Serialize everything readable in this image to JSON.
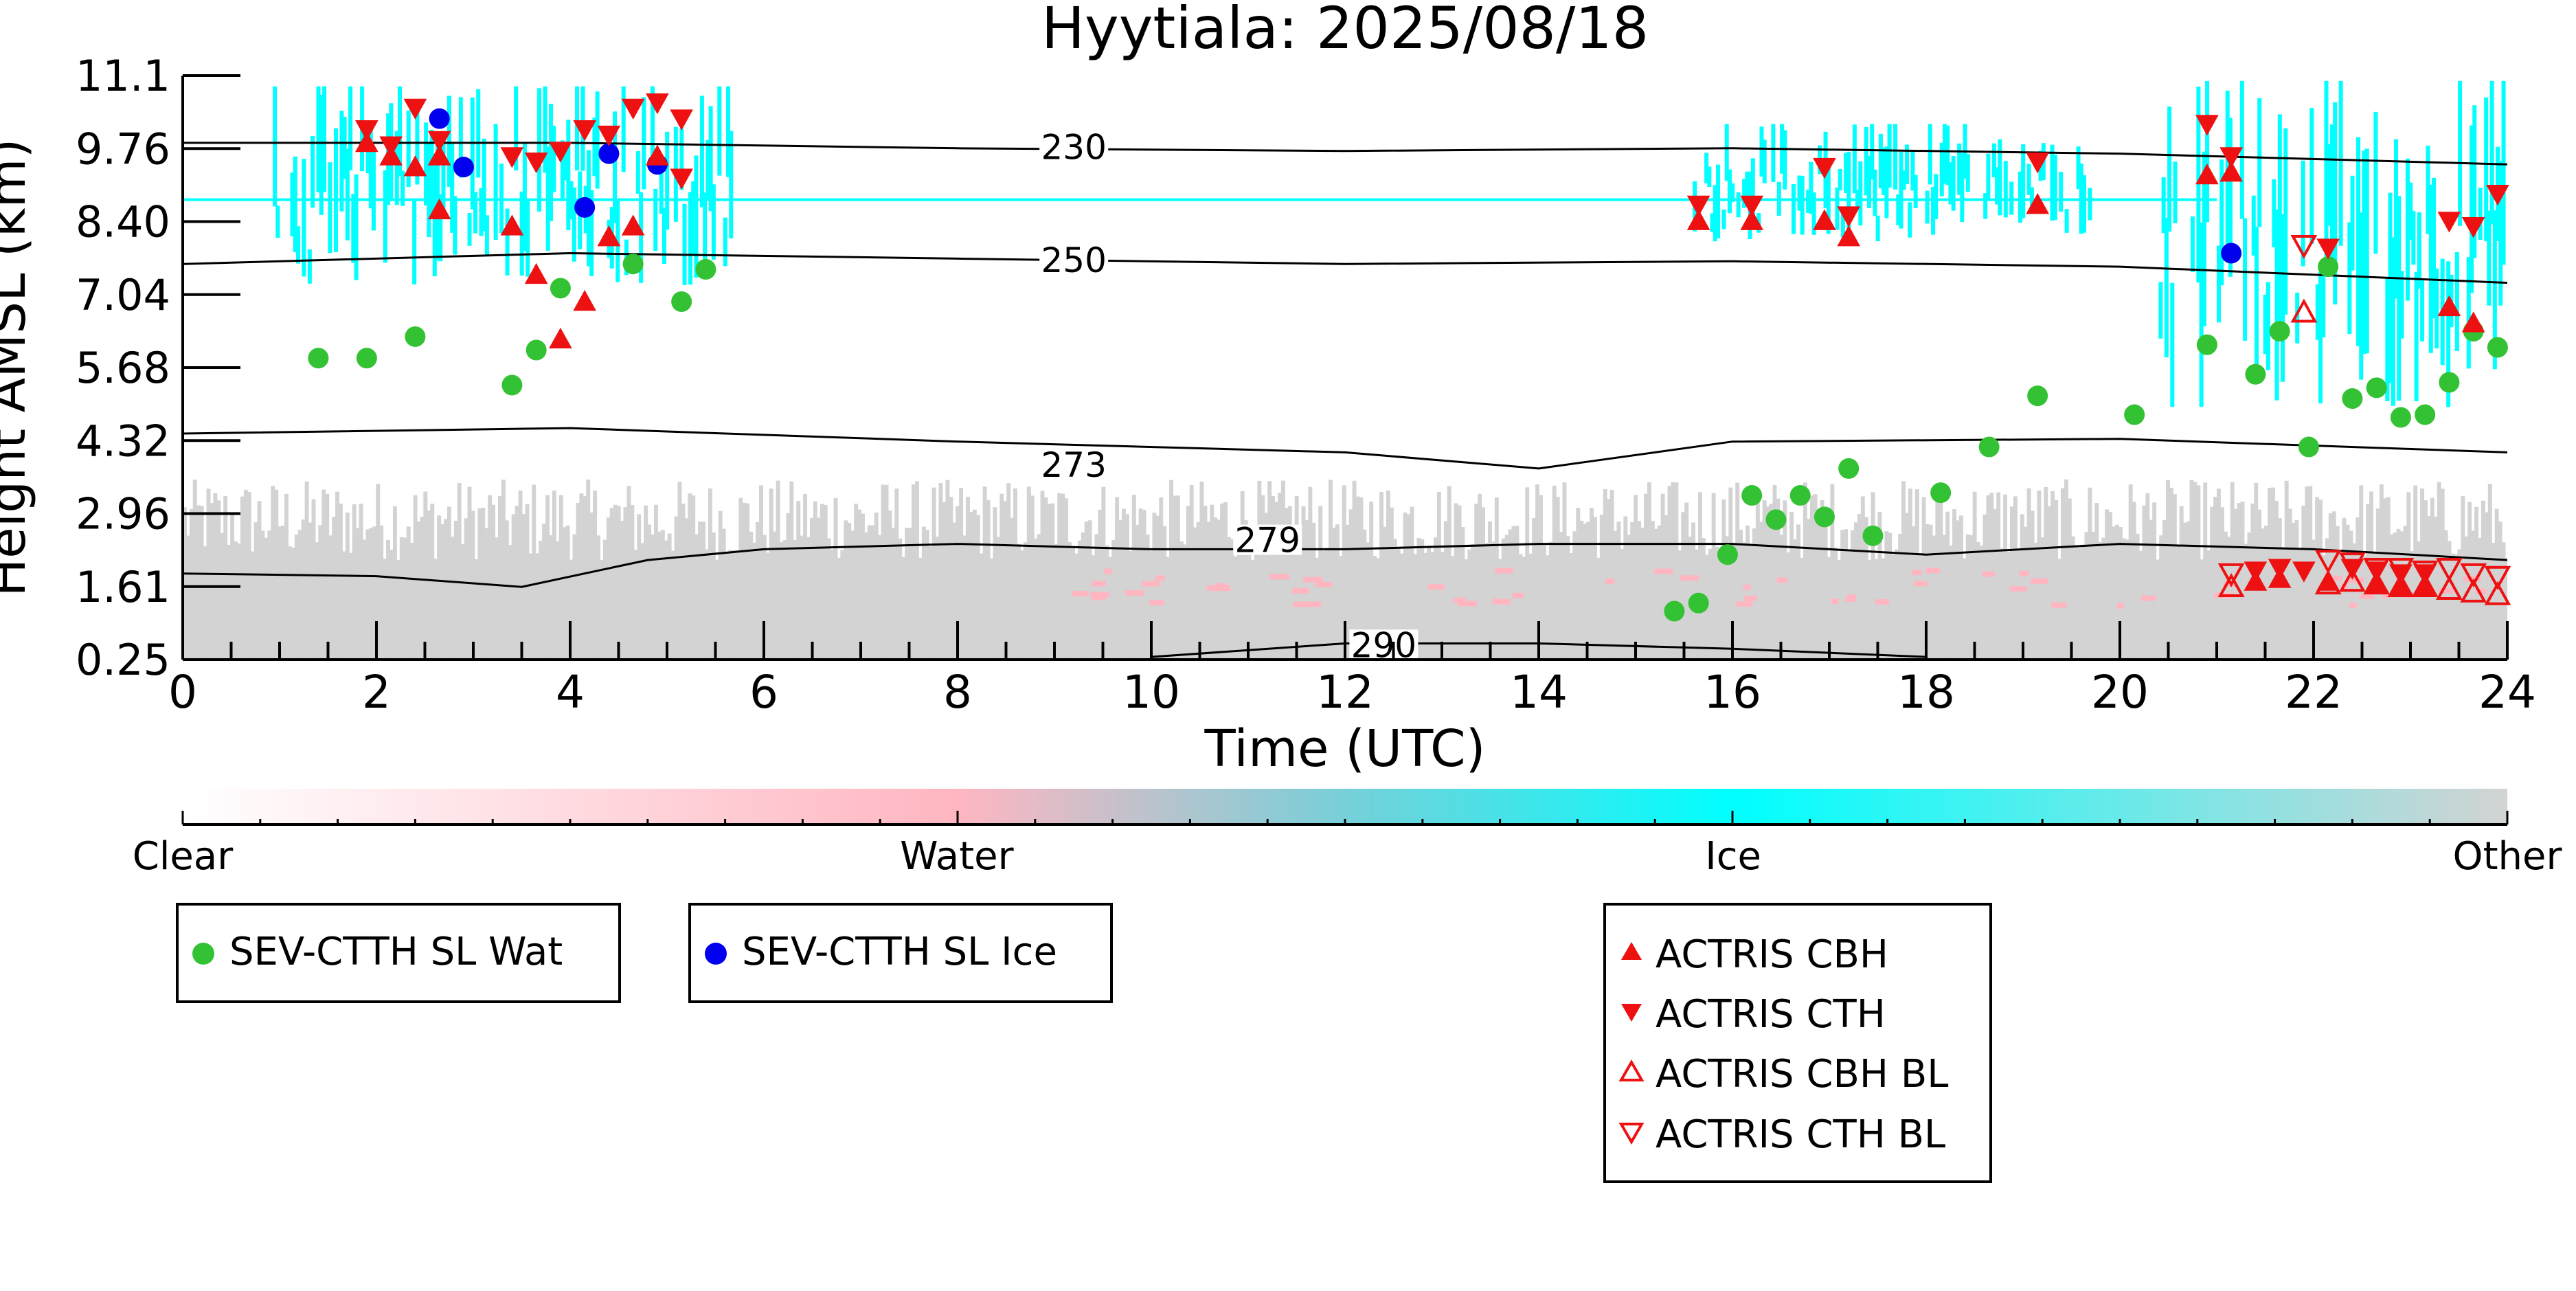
{
  "chart_data": {
    "type": "scatter",
    "title": "Hyytiala: 2025/08/18",
    "xlabel": "Time (UTC)",
    "ylabel": "Height AMSL (km)",
    "xlim": [
      0,
      24
    ],
    "ylim": [
      0.25,
      11.1
    ],
    "x_ticks": [
      "0",
      "2",
      "4",
      "6",
      "8",
      "10",
      "12",
      "14",
      "16",
      "18",
      "20",
      "22",
      "24"
    ],
    "y_ticks": [
      "0.25",
      "1.61",
      "2.96",
      "4.32",
      "5.68",
      "7.04",
      "8.40",
      "9.76",
      "11.1"
    ],
    "background_mask": {
      "description_classes": [
        "Clear",
        "Water",
        "Ice",
        "Other"
      ],
      "colorbar_colors": [
        "#ffffff",
        "#ffb6c1",
        "#00ffff",
        "#d3d3d3"
      ],
      "ice_regions": [
        {
          "x": [
            0.9,
            5.7
          ],
          "y": [
            7.2,
            10.9
          ]
        },
        {
          "x": [
            15.5,
            19.7
          ],
          "y": [
            8.0,
            10.2
          ]
        },
        {
          "x": [
            20.4,
            24.0
          ],
          "y": [
            4.9,
            11.0
          ]
        }
      ],
      "other_region": {
        "x": [
          0,
          24
        ],
        "y": [
          0.25,
          3.6
        ]
      }
    },
    "contours": [
      {
        "label": "230",
        "points": [
          [
            0,
            9.85
          ],
          [
            4,
            9.85
          ],
          [
            8,
            9.75
          ],
          [
            12,
            9.7
          ],
          [
            16,
            9.75
          ],
          [
            20,
            9.65
          ],
          [
            24,
            9.45
          ]
        ]
      },
      {
        "label": "250",
        "points": [
          [
            0,
            7.6
          ],
          [
            4,
            7.8
          ],
          [
            8,
            7.7
          ],
          [
            12,
            7.6
          ],
          [
            16,
            7.65
          ],
          [
            20,
            7.55
          ],
          [
            24,
            7.25
          ]
        ]
      },
      {
        "label": "273",
        "points": [
          [
            0,
            4.45
          ],
          [
            4,
            4.55
          ],
          [
            8,
            4.3
          ],
          [
            12,
            4.1
          ],
          [
            14,
            3.8
          ],
          [
            16,
            4.3
          ],
          [
            20,
            4.35
          ],
          [
            24,
            4.1
          ]
        ]
      },
      {
        "label": "279",
        "points": [
          [
            0,
            1.85
          ],
          [
            2,
            1.8
          ],
          [
            3.5,
            1.6
          ],
          [
            4.8,
            2.1
          ],
          [
            6,
            2.3
          ],
          [
            8,
            2.4
          ],
          [
            10,
            2.3
          ],
          [
            12,
            2.3
          ],
          [
            14,
            2.4
          ],
          [
            16,
            2.4
          ],
          [
            18,
            2.2
          ],
          [
            20,
            2.4
          ],
          [
            22,
            2.3
          ],
          [
            24,
            2.1
          ]
        ]
      },
      {
        "label": "290",
        "points": [
          [
            10,
            0.3
          ],
          [
            12,
            0.55
          ],
          [
            14,
            0.55
          ],
          [
            16,
            0.45
          ],
          [
            18,
            0.3
          ]
        ]
      }
    ],
    "series": [
      {
        "name": "SEV-CTTH SL Wat",
        "marker": "circle",
        "color": "#33c233",
        "x": [
          1.4,
          1.9,
          2.4,
          3.4,
          3.65,
          3.9,
          4.65,
          5.15,
          5.4,
          15.4,
          15.65,
          15.95,
          16.2,
          16.45,
          16.7,
          16.95,
          17.2,
          17.45,
          18.15,
          18.65,
          19.15,
          20.15,
          20.9,
          21.4,
          21.65,
          21.95,
          22.15,
          22.4,
          22.65,
          22.9,
          23.15,
          23.4,
          23.65,
          23.9
        ],
        "y": [
          5.85,
          5.85,
          6.25,
          5.35,
          6.0,
          7.15,
          7.6,
          6.9,
          7.5,
          1.15,
          1.3,
          2.2,
          3.3,
          2.85,
          3.3,
          2.9,
          3.8,
          2.55,
          3.35,
          4.2,
          5.15,
          4.8,
          6.1,
          5.55,
          6.35,
          4.2,
          7.55,
          5.1,
          5.3,
          4.75,
          4.8,
          5.4,
          6.35,
          6.05
        ]
      },
      {
        "name": "SEV-CTTH SL Ice",
        "marker": "circle",
        "color": "#0000ee",
        "x": [
          2.65,
          2.9,
          4.15,
          4.4,
          4.9,
          21.15
        ],
        "y": [
          10.3,
          9.4,
          8.65,
          9.65,
          9.45,
          7.8
        ]
      },
      {
        "name": "ACTRIS CBH",
        "marker": "triangle-up",
        "color": "#ee1111",
        "x": [
          1.9,
          2.15,
          2.4,
          2.65,
          2.65,
          3.4,
          3.65,
          3.9,
          4.15,
          4.4,
          4.65,
          4.9,
          15.65,
          16.2,
          16.95,
          17.2,
          19.15,
          20.9,
          21.15,
          21.4,
          21.65,
          22.15,
          22.65,
          22.9,
          23.15,
          23.4,
          23.65
        ],
        "y": [
          9.85,
          9.6,
          9.4,
          9.6,
          8.6,
          8.3,
          7.4,
          6.2,
          6.9,
          8.1,
          8.3,
          9.6,
          8.4,
          8.4,
          8.4,
          8.1,
          8.7,
          9.25,
          9.3,
          1.7,
          1.75,
          1.7,
          1.65,
          1.6,
          1.6,
          6.8,
          6.5
        ]
      },
      {
        "name": "ACTRIS CTH",
        "marker": "triangle-down",
        "color": "#ee1111",
        "x": [
          1.9,
          2.15,
          2.4,
          2.65,
          3.4,
          3.65,
          3.9,
          4.15,
          4.4,
          4.65,
          4.9,
          5.15,
          5.15,
          15.65,
          16.2,
          16.95,
          17.2,
          19.15,
          20.9,
          21.15,
          21.4,
          21.65,
          21.9,
          22.15,
          22.4,
          22.65,
          22.9,
          23.15,
          23.4,
          23.65,
          23.9
        ],
        "y": [
          10.1,
          9.8,
          10.5,
          9.9,
          9.6,
          9.5,
          9.7,
          10.1,
          10.0,
          10.5,
          10.6,
          10.3,
          9.2,
          8.7,
          8.7,
          9.4,
          8.5,
          9.5,
          10.2,
          9.6,
          1.9,
          1.95,
          1.9,
          7.9,
          1.95,
          1.9,
          1.85,
          1.85,
          8.4,
          8.3,
          8.9
        ]
      },
      {
        "name": "ACTRIS CBH BL",
        "marker": "triangle-up-open",
        "color": "#ee1111",
        "x": [
          21.9,
          22.15,
          22.4,
          22.65,
          22.9,
          23.15,
          23.4,
          23.65,
          23.9,
          21.15
        ],
        "y": [
          6.7,
          1.65,
          1.7,
          1.65,
          1.6,
          1.6,
          1.55,
          1.5,
          1.45,
          1.6
        ]
      },
      {
        "name": "ACTRIS CTH BL",
        "marker": "triangle-down-open",
        "color": "#ee1111",
        "x": [
          21.15,
          21.9,
          22.15,
          22.4,
          22.65,
          22.9,
          23.15,
          23.4,
          23.65,
          23.9
        ],
        "y": [
          1.85,
          7.95,
          2.1,
          2.05,
          1.95,
          1.95,
          1.9,
          1.95,
          1.85,
          1.8
        ]
      }
    ],
    "colorbar": {
      "labels": [
        "Clear",
        "Water",
        "Ice",
        "Other"
      ],
      "stops": [
        0,
        0.333,
        0.667,
        1
      ]
    },
    "legends": [
      {
        "entries": [
          "SEV-CTTH SL Wat"
        ]
      },
      {
        "entries": [
          "SEV-CTTH SL Ice"
        ]
      },
      {
        "entries": [
          "ACTRIS CBH",
          "ACTRIS CTH",
          "ACTRIS CBH BL",
          "ACTRIS CTH BL"
        ]
      }
    ]
  }
}
